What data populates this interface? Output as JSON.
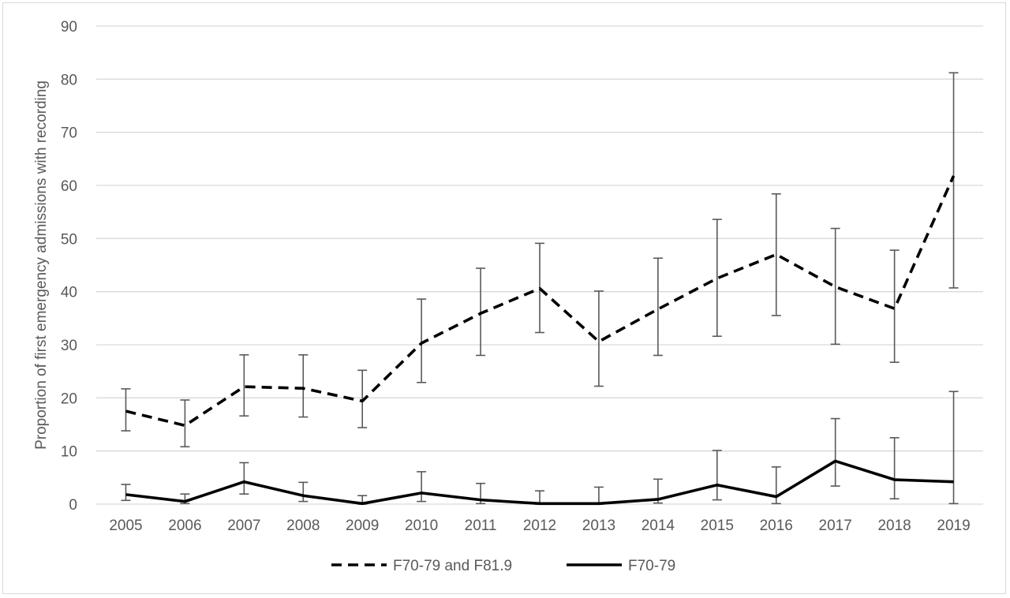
{
  "chart_data": {
    "type": "line",
    "title": "",
    "xlabel": "",
    "ylabel": "Proportion of first emergency admissions with recording",
    "ylim": [
      0,
      90
    ],
    "yticks": [
      0,
      10,
      20,
      30,
      40,
      50,
      60,
      70,
      80,
      90
    ],
    "grid": "horizontal",
    "legend_position": "bottom",
    "categories": [
      "2005",
      "2006",
      "2007",
      "2008",
      "2009",
      "2010",
      "2011",
      "2012",
      "2013",
      "2014",
      "2015",
      "2016",
      "2017",
      "2018",
      "2019"
    ],
    "series": [
      {
        "name": "F70-79 and F81.9",
        "line_style": "dashed",
        "color": "#000000",
        "values": [
          17.5,
          14.8,
          22.1,
          21.8,
          19.4,
          30.3,
          35.9,
          40.6,
          30.6,
          36.7,
          42.5,
          47.0,
          40.9,
          36.8,
          61.8
        ],
        "error_low": [
          13.8,
          10.8,
          16.6,
          16.4,
          14.4,
          22.9,
          28.0,
          32.3,
          22.2,
          28.0,
          31.6,
          35.5,
          30.1,
          26.7,
          40.7
        ],
        "error_high": [
          21.7,
          19.6,
          28.1,
          28.1,
          25.2,
          38.6,
          44.4,
          49.1,
          40.1,
          46.3,
          53.6,
          58.4,
          51.9,
          47.8,
          81.2
        ]
      },
      {
        "name": "F70-79",
        "line_style": "solid",
        "color": "#000000",
        "values": [
          1.8,
          0.5,
          4.2,
          1.6,
          0.1,
          2.1,
          0.8,
          0.1,
          0.1,
          0.9,
          3.6,
          1.4,
          8.1,
          4.6,
          4.2
        ],
        "error_low": [
          0.7,
          0.1,
          1.9,
          0.5,
          0.0,
          0.5,
          0.1,
          0.0,
          0.0,
          0.2,
          0.8,
          0.1,
          3.4,
          1.0,
          0.1
        ],
        "error_high": [
          3.7,
          1.9,
          7.8,
          4.1,
          1.6,
          6.1,
          3.9,
          2.5,
          3.2,
          4.7,
          10.1,
          7.0,
          16.1,
          12.5,
          21.2
        ]
      }
    ]
  }
}
